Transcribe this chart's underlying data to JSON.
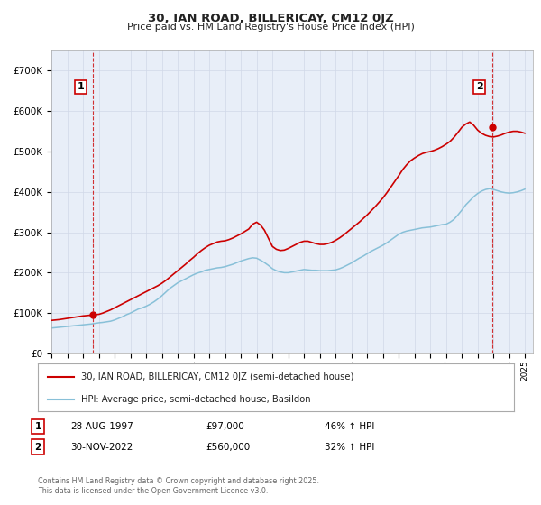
{
  "title1": "30, IAN ROAD, BILLERICAY, CM12 0JZ",
  "title2": "Price paid vs. HM Land Registry's House Price Index (HPI)",
  "ylim": [
    0,
    750000
  ],
  "yticks": [
    0,
    100000,
    200000,
    300000,
    400000,
    500000,
    600000,
    700000
  ],
  "ytick_labels": [
    "£0",
    "£100K",
    "£200K",
    "£300K",
    "£400K",
    "£500K",
    "£600K",
    "£700K"
  ],
  "legend_entry1": "30, IAN ROAD, BILLERICAY, CM12 0JZ (semi-detached house)",
  "legend_entry2": "HPI: Average price, semi-detached house, Basildon",
  "sale1_date": "28-AUG-1997",
  "sale1_price": "£97,000",
  "sale1_hpi": "46% ↑ HPI",
  "sale1_x": 1997.65,
  "sale1_y": 97000,
  "sale2_date": "30-NOV-2022",
  "sale2_price": "£560,000",
  "sale2_hpi": "32% ↑ HPI",
  "sale2_x": 2022.91,
  "sale2_y": 560000,
  "line_color_red": "#cc0000",
  "line_color_blue": "#88c0d8",
  "vline_color": "#cc0000",
  "marker_color_red": "#cc0000",
  "grid_color": "#d0d8e8",
  "bg_plot": "#e8eef8",
  "background_color": "#ffffff",
  "footer_text": "Contains HM Land Registry data © Crown copyright and database right 2025.\nThis data is licensed under the Open Government Licence v3.0.",
  "xmin": 1995,
  "xmax": 2025.5,
  "years_hpi": [
    1995.0,
    1995.25,
    1995.5,
    1995.75,
    1996.0,
    1996.25,
    1996.5,
    1996.75,
    1997.0,
    1997.25,
    1997.5,
    1997.75,
    1998.0,
    1998.25,
    1998.5,
    1998.75,
    1999.0,
    1999.25,
    1999.5,
    1999.75,
    2000.0,
    2000.25,
    2000.5,
    2000.75,
    2001.0,
    2001.25,
    2001.5,
    2001.75,
    2002.0,
    2002.25,
    2002.5,
    2002.75,
    2003.0,
    2003.25,
    2003.5,
    2003.75,
    2004.0,
    2004.25,
    2004.5,
    2004.75,
    2005.0,
    2005.25,
    2005.5,
    2005.75,
    2006.0,
    2006.25,
    2006.5,
    2006.75,
    2007.0,
    2007.25,
    2007.5,
    2007.75,
    2008.0,
    2008.25,
    2008.5,
    2008.75,
    2009.0,
    2009.25,
    2009.5,
    2009.75,
    2010.0,
    2010.25,
    2010.5,
    2010.75,
    2011.0,
    2011.25,
    2011.5,
    2011.75,
    2012.0,
    2012.25,
    2012.5,
    2012.75,
    2013.0,
    2013.25,
    2013.5,
    2013.75,
    2014.0,
    2014.25,
    2014.5,
    2014.75,
    2015.0,
    2015.25,
    2015.5,
    2015.75,
    2016.0,
    2016.25,
    2016.5,
    2016.75,
    2017.0,
    2017.25,
    2017.5,
    2017.75,
    2018.0,
    2018.25,
    2018.5,
    2018.75,
    2019.0,
    2019.25,
    2019.5,
    2019.75,
    2020.0,
    2020.25,
    2020.5,
    2020.75,
    2021.0,
    2021.25,
    2021.5,
    2021.75,
    2022.0,
    2022.25,
    2022.5,
    2022.75,
    2023.0,
    2023.25,
    2023.5,
    2023.75,
    2024.0,
    2024.25,
    2024.5,
    2024.75,
    2025.0
  ],
  "hpi_values": [
    63000,
    64000,
    65000,
    66000,
    67000,
    68000,
    69000,
    70000,
    71000,
    72000,
    73000,
    74500,
    76000,
    77000,
    78500,
    80000,
    83000,
    87000,
    91000,
    96000,
    100000,
    105000,
    110000,
    113000,
    117000,
    122000,
    128000,
    135000,
    143000,
    152000,
    161000,
    168000,
    175000,
    180000,
    185000,
    190000,
    195000,
    199000,
    202000,
    206000,
    208000,
    210000,
    212000,
    213000,
    215000,
    218000,
    221000,
    225000,
    229000,
    232000,
    235000,
    237000,
    236000,
    231000,
    225000,
    218000,
    210000,
    205000,
    202000,
    200000,
    200000,
    202000,
    204000,
    206000,
    208000,
    207000,
    206000,
    206000,
    205000,
    205000,
    205000,
    206000,
    207000,
    210000,
    214000,
    219000,
    224000,
    230000,
    236000,
    241000,
    247000,
    253000,
    258000,
    263000,
    268000,
    274000,
    281000,
    288000,
    295000,
    300000,
    303000,
    305000,
    307000,
    309000,
    311000,
    312000,
    313000,
    315000,
    317000,
    319000,
    320000,
    325000,
    332000,
    343000,
    355000,
    368000,
    378000,
    388000,
    396000,
    402000,
    406000,
    408000,
    406000,
    403000,
    400000,
    398000,
    397000,
    398000,
    400000,
    403000,
    407000
  ],
  "red_values": [
    82000,
    83000,
    84000,
    85500,
    87000,
    88500,
    90000,
    91500,
    93000,
    94000,
    95000,
    96200,
    97000,
    100000,
    104000,
    108000,
    113000,
    118000,
    123000,
    128000,
    133000,
    138000,
    143000,
    148000,
    153000,
    158000,
    163000,
    168000,
    174000,
    181000,
    189000,
    197000,
    205000,
    213000,
    221000,
    230000,
    238000,
    247000,
    255000,
    262000,
    268000,
    272000,
    276000,
    278000,
    279000,
    282000,
    286000,
    291000,
    296000,
    302000,
    308000,
    320000,
    325000,
    318000,
    305000,
    285000,
    265000,
    258000,
    255000,
    256000,
    260000,
    265000,
    270000,
    275000,
    278000,
    278000,
    275000,
    272000,
    270000,
    270000,
    272000,
    275000,
    280000,
    286000,
    293000,
    301000,
    309000,
    317000,
    325000,
    334000,
    343000,
    353000,
    363000,
    374000,
    385000,
    398000,
    412000,
    426000,
    440000,
    455000,
    467000,
    477000,
    484000,
    490000,
    495000,
    498000,
    500000,
    503000,
    507000,
    512000,
    518000,
    525000,
    535000,
    547000,
    560000,
    568000,
    573000,
    565000,
    553000,
    545000,
    540000,
    537000,
    536000,
    538000,
    541000,
    545000,
    548000,
    550000,
    550000,
    548000,
    545000
  ]
}
